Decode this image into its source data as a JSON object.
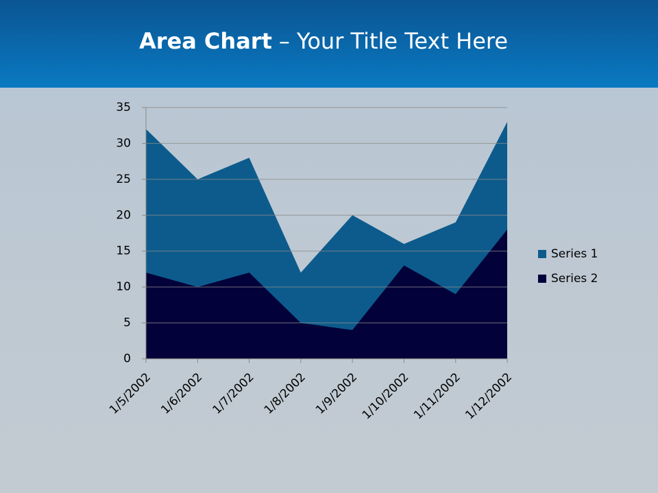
{
  "chart_data": {
    "type": "area",
    "title_lead": "Area Chart",
    "title": "– Your Title Text Here",
    "categories": [
      "1/5/2002",
      "1/6/2002",
      "1/7/2002",
      "1/8/2002",
      "1/9/2002",
      "1/10/2002",
      "1/11/2002",
      "1/12/2002"
    ],
    "series": [
      {
        "name": "Series 1",
        "color": "#0d5b8c",
        "values": [
          32,
          25,
          28,
          12,
          20,
          16,
          19,
          33
        ]
      },
      {
        "name": "Series 2",
        "color": "#03013a",
        "values": [
          12,
          10,
          12,
          5,
          4,
          13,
          9,
          18
        ]
      }
    ],
    "ylim": [
      0,
      35
    ],
    "yticks": [
      0,
      5,
      10,
      15,
      20,
      25,
      30,
      35
    ],
    "grid": true,
    "legend": "right"
  }
}
